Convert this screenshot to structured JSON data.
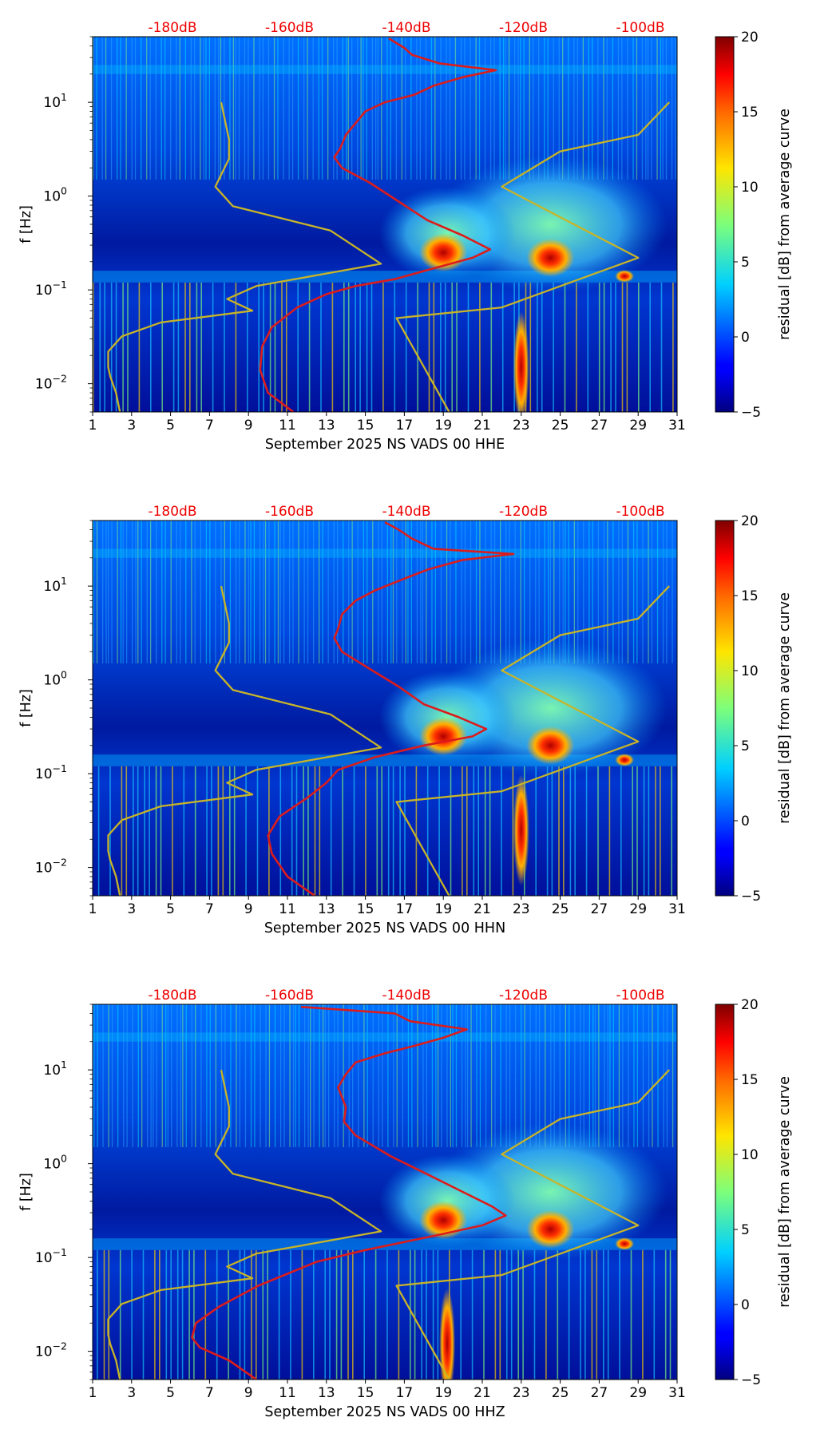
{
  "chart_data": [
    {
      "type": "heatmap",
      "xlabel": "September 2025 NS VADS 00 HHE",
      "ylabel": "f [Hz]",
      "x_ticks": [
        "1",
        "3",
        "5",
        "7",
        "9",
        "11",
        "13",
        "15",
        "17",
        "19",
        "21",
        "23",
        "25",
        "27",
        "29",
        "31"
      ],
      "xlim": [
        1,
        31
      ],
      "ylim": [
        0.005,
        50
      ],
      "yscale": "log",
      "y_ticks": [
        {
          "base": "10",
          "exp": "1"
        },
        {
          "base": "10",
          "exp": "0"
        },
        {
          "base": "10",
          "exp": "−1"
        },
        {
          "base": "10",
          "exp": "−2"
        }
      ],
      "top_axis_labels": [
        "-180dB",
        "-160dB",
        "-140dB",
        "-120dB",
        "-100dB"
      ],
      "colorbar": {
        "label": "residual [dB] from average curve",
        "ticks": [
          "20",
          "15",
          "10",
          "5",
          "0",
          "−5"
        ],
        "range": [
          -5,
          20
        ],
        "colormap": "jet"
      },
      "hotspots": [
        {
          "day": 19.0,
          "f": 0.25,
          "residual_db": 17
        },
        {
          "day": 24.5,
          "f": 0.22,
          "residual_db": 17
        },
        {
          "day": 28.3,
          "f": 0.14,
          "residual_db": 15
        },
        {
          "day": 23.0,
          "f": 0.015,
          "residual_db": 13
        }
      ],
      "series": [
        {
          "color": "#dc1c1c",
          "points": [
            [
              11.3,
              0.005
            ],
            [
              10.0,
              0.008
            ],
            [
              9.6,
              0.014
            ],
            [
              9.7,
              0.025
            ],
            [
              10.2,
              0.04
            ],
            [
              11.5,
              0.065
            ],
            [
              13.0,
              0.09
            ],
            [
              14.5,
              0.11
            ],
            [
              16.5,
              0.13
            ],
            [
              18.5,
              0.17
            ],
            [
              20.5,
              0.22
            ],
            [
              21.4,
              0.27
            ],
            [
              20.0,
              0.38
            ],
            [
              18.2,
              0.55
            ],
            [
              16.8,
              0.85
            ],
            [
              15.2,
              1.4
            ],
            [
              13.8,
              2.0
            ],
            [
              13.4,
              2.6
            ],
            [
              13.7,
              3.2
            ],
            [
              14.0,
              4.5
            ],
            [
              14.5,
              6.0
            ],
            [
              15.0,
              8.0
            ],
            [
              16.0,
              10.0
            ],
            [
              17.5,
              12.0
            ],
            [
              18.5,
              15.0
            ],
            [
              20.0,
              18.5
            ],
            [
              21.7,
              22.0
            ],
            [
              18.8,
              26.0
            ],
            [
              17.4,
              32.0
            ],
            [
              17.0,
              38.0
            ],
            [
              16.2,
              48.0
            ]
          ]
        },
        {
          "color": "#c8b428",
          "points": [
            [
              2.4,
              0.005
            ],
            [
              2.2,
              0.008
            ],
            [
              1.9,
              0.012
            ],
            [
              1.8,
              0.015
            ],
            [
              1.8,
              0.022
            ],
            [
              2.5,
              0.032
            ],
            [
              4.5,
              0.045
            ],
            [
              9.2,
              0.06
            ],
            [
              7.9,
              0.08
            ],
            [
              9.4,
              0.11
            ],
            [
              15.8,
              0.19
            ],
            [
              13.2,
              0.43
            ],
            [
              8.2,
              0.78
            ],
            [
              7.3,
              1.26
            ],
            [
              8.0,
              2.5
            ],
            [
              8.0,
              4.0
            ],
            [
              7.6,
              10.0
            ]
          ]
        },
        {
          "color": "#c8b428",
          "points": [
            [
              19.3,
              0.005
            ],
            [
              16.6,
              0.05
            ],
            [
              22.0,
              0.065
            ],
            [
              29.0,
              0.22
            ],
            [
              22.0,
              1.26
            ],
            [
              25.0,
              3.0
            ],
            [
              29.0,
              4.5
            ],
            [
              30.6,
              10.0
            ]
          ]
        }
      ]
    },
    {
      "type": "heatmap",
      "xlabel": "September 2025 NS VADS 00 HHN",
      "ylabel": "f [Hz]",
      "x_ticks": [
        "1",
        "3",
        "5",
        "7",
        "9",
        "11",
        "13",
        "15",
        "17",
        "19",
        "21",
        "23",
        "25",
        "27",
        "29",
        "31"
      ],
      "xlim": [
        1,
        31
      ],
      "ylim": [
        0.005,
        50
      ],
      "yscale": "log",
      "y_ticks": [
        {
          "base": "10",
          "exp": "1"
        },
        {
          "base": "10",
          "exp": "0"
        },
        {
          "base": "10",
          "exp": "−1"
        },
        {
          "base": "10",
          "exp": "−2"
        }
      ],
      "top_axis_labels": [
        "-180dB",
        "-160dB",
        "-140dB",
        "-120dB",
        "-100dB"
      ],
      "colorbar": {
        "label": "residual [dB] from average curve",
        "ticks": [
          "20",
          "15",
          "10",
          "5",
          "0",
          "−5"
        ],
        "range": [
          -5,
          20
        ],
        "colormap": "jet"
      },
      "hotspots": [
        {
          "day": 19.0,
          "f": 0.25,
          "residual_db": 17
        },
        {
          "day": 24.5,
          "f": 0.2,
          "residual_db": 17
        },
        {
          "day": 28.3,
          "f": 0.14,
          "residual_db": 15
        },
        {
          "day": 23.0,
          "f": 0.025,
          "residual_db": 15
        }
      ],
      "series": [
        {
          "color": "#dc1c1c",
          "points": [
            [
              12.4,
              0.005
            ],
            [
              11.0,
              0.008
            ],
            [
              10.2,
              0.014
            ],
            [
              10.0,
              0.022
            ],
            [
              10.6,
              0.035
            ],
            [
              12.0,
              0.055
            ],
            [
              13.0,
              0.08
            ],
            [
              13.6,
              0.11
            ],
            [
              15.5,
              0.15
            ],
            [
              18.0,
              0.2
            ],
            [
              20.5,
              0.25
            ],
            [
              21.2,
              0.3
            ],
            [
              19.8,
              0.4
            ],
            [
              18.0,
              0.55
            ],
            [
              16.7,
              0.85
            ],
            [
              15.0,
              1.4
            ],
            [
              13.8,
              2.0
            ],
            [
              13.4,
              2.8
            ],
            [
              13.6,
              3.5
            ],
            [
              13.8,
              5.0
            ],
            [
              14.5,
              7.0
            ],
            [
              15.5,
              9.0
            ],
            [
              17.0,
              12.0
            ],
            [
              18.2,
              15.0
            ],
            [
              20.0,
              19.0
            ],
            [
              22.6,
              22.0
            ],
            [
              18.5,
              25.0
            ],
            [
              17.4,
              32.0
            ],
            [
              16.7,
              40.0
            ],
            [
              16.0,
              48.0
            ]
          ]
        },
        {
          "color": "#c8b428",
          "points": [
            [
              2.4,
              0.005
            ],
            [
              2.2,
              0.008
            ],
            [
              1.9,
              0.012
            ],
            [
              1.8,
              0.015
            ],
            [
              1.8,
              0.022
            ],
            [
              2.5,
              0.032
            ],
            [
              4.5,
              0.045
            ],
            [
              9.2,
              0.06
            ],
            [
              7.9,
              0.08
            ],
            [
              9.4,
              0.11
            ],
            [
              15.8,
              0.19
            ],
            [
              13.2,
              0.43
            ],
            [
              8.2,
              0.78
            ],
            [
              7.3,
              1.26
            ],
            [
              8.0,
              2.5
            ],
            [
              8.0,
              4.0
            ],
            [
              7.6,
              10.0
            ]
          ]
        },
        {
          "color": "#c8b428",
          "points": [
            [
              19.3,
              0.005
            ],
            [
              16.6,
              0.05
            ],
            [
              22.0,
              0.065
            ],
            [
              29.0,
              0.22
            ],
            [
              22.0,
              1.26
            ],
            [
              25.0,
              3.0
            ],
            [
              29.0,
              4.5
            ],
            [
              30.6,
              10.0
            ]
          ]
        }
      ]
    },
    {
      "type": "heatmap",
      "xlabel": "September 2025 NS VADS 00 HHZ",
      "ylabel": "f [Hz]",
      "x_ticks": [
        "1",
        "3",
        "5",
        "7",
        "9",
        "11",
        "13",
        "15",
        "17",
        "19",
        "21",
        "23",
        "25",
        "27",
        "29",
        "31"
      ],
      "xlim": [
        1,
        31
      ],
      "ylim": [
        0.005,
        50
      ],
      "yscale": "log",
      "y_ticks": [
        {
          "base": "10",
          "exp": "1"
        },
        {
          "base": "10",
          "exp": "0"
        },
        {
          "base": "10",
          "exp": "−1"
        },
        {
          "base": "10",
          "exp": "−2"
        }
      ],
      "top_axis_labels": [
        "-180dB",
        "-160dB",
        "-140dB",
        "-120dB",
        "-100dB"
      ],
      "colorbar": {
        "label": "residual [dB] from average curve",
        "ticks": [
          "20",
          "15",
          "10",
          "5",
          "0",
          "−5"
        ],
        "range": [
          -5,
          20
        ],
        "colormap": "jet"
      },
      "hotspots": [
        {
          "day": 19.0,
          "f": 0.25,
          "residual_db": 17
        },
        {
          "day": 24.5,
          "f": 0.2,
          "residual_db": 17
        },
        {
          "day": 28.3,
          "f": 0.14,
          "residual_db": 15
        },
        {
          "day": 19.2,
          "f": 0.012,
          "residual_db": 18
        }
      ],
      "series": [
        {
          "color": "#dc1c1c",
          "points": [
            [
              9.4,
              0.005
            ],
            [
              8.0,
              0.008
            ],
            [
              6.5,
              0.011
            ],
            [
              6.1,
              0.014
            ],
            [
              6.3,
              0.02
            ],
            [
              7.5,
              0.03
            ],
            [
              9.5,
              0.05
            ],
            [
              12.5,
              0.09
            ],
            [
              15.0,
              0.12
            ],
            [
              18.5,
              0.17
            ],
            [
              21.0,
              0.22
            ],
            [
              22.2,
              0.28
            ],
            [
              21.5,
              0.35
            ],
            [
              20.0,
              0.5
            ],
            [
              18.3,
              0.75
            ],
            [
              16.3,
              1.2
            ],
            [
              14.5,
              2.0
            ],
            [
              13.9,
              2.8
            ],
            [
              14.0,
              4.0
            ],
            [
              13.6,
              6.5
            ],
            [
              14.0,
              9.0
            ],
            [
              14.5,
              12.0
            ],
            [
              16.0,
              15.0
            ],
            [
              17.5,
              18.0
            ],
            [
              19.0,
              22.0
            ],
            [
              20.2,
              27.0
            ],
            [
              17.3,
              33.0
            ],
            [
              16.5,
              40.0
            ],
            [
              11.7,
              47.0
            ]
          ]
        },
        {
          "color": "#c8b428",
          "points": [
            [
              2.4,
              0.005
            ],
            [
              2.2,
              0.008
            ],
            [
              1.9,
              0.012
            ],
            [
              1.8,
              0.015
            ],
            [
              1.8,
              0.022
            ],
            [
              2.5,
              0.032
            ],
            [
              4.5,
              0.045
            ],
            [
              9.2,
              0.06
            ],
            [
              7.9,
              0.08
            ],
            [
              9.4,
              0.11
            ],
            [
              15.8,
              0.19
            ],
            [
              13.2,
              0.43
            ],
            [
              8.2,
              0.78
            ],
            [
              7.3,
              1.26
            ],
            [
              8.0,
              2.5
            ],
            [
              8.0,
              4.0
            ],
            [
              7.6,
              10.0
            ]
          ]
        },
        {
          "color": "#c8b428",
          "points": [
            [
              19.3,
              0.005
            ],
            [
              16.6,
              0.05
            ],
            [
              22.0,
              0.065
            ],
            [
              29.0,
              0.22
            ],
            [
              22.0,
              1.26
            ],
            [
              25.0,
              3.0
            ],
            [
              29.0,
              4.5
            ],
            [
              30.6,
              10.0
            ]
          ]
        }
      ]
    }
  ]
}
